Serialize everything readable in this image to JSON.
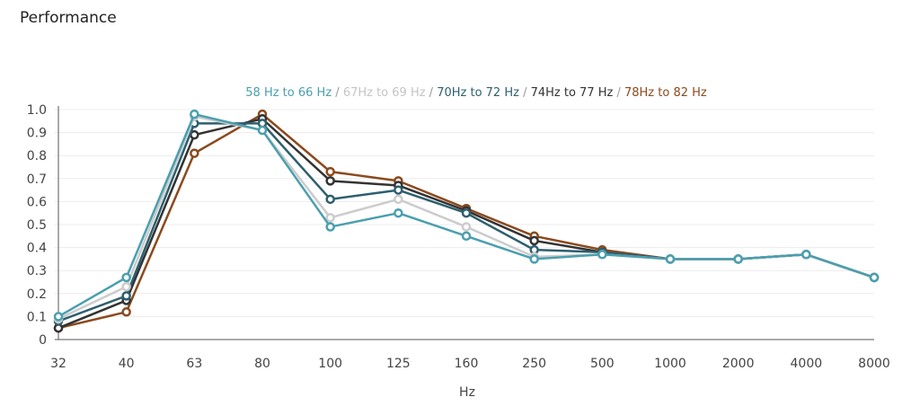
{
  "panel": {
    "title": "Performance"
  },
  "chart_data": {
    "type": "line",
    "title": "",
    "xlabel": "Hz",
    "ylabel": "",
    "ylim": [
      0,
      1.0
    ],
    "yticks": [
      "0",
      "0.1",
      "0.2",
      "0.3",
      "0.4",
      "0.5",
      "0.6",
      "0.7",
      "0.8",
      "0.9",
      "1.0"
    ],
    "categories": [
      "32",
      "40",
      "63",
      "80",
      "100",
      "125",
      "160",
      "250",
      "500",
      "1000",
      "2000",
      "4000",
      "8000"
    ],
    "grid": true,
    "legend": "top-center",
    "series": [
      {
        "name": "58 Hz to 66 Hz",
        "color": "#4a9fae",
        "values": [
          0.1,
          0.27,
          0.98,
          0.91,
          0.49,
          0.55,
          0.45,
          0.35,
          0.37,
          0.35,
          0.35,
          0.37,
          0.27
        ]
      },
      {
        "name": "67Hz to 69 Hz",
        "color": "#cccccc",
        "values": [
          0.09,
          0.23,
          0.97,
          0.91,
          0.53,
          0.61,
          0.49,
          0.36,
          0.37,
          0.35,
          0.35,
          0.37,
          0.27
        ]
      },
      {
        "name": "70Hz to 72 Hz",
        "color": "#2e5f6e",
        "values": [
          0.08,
          0.19,
          0.94,
          0.94,
          0.61,
          0.65,
          0.55,
          0.39,
          0.38,
          0.35,
          0.35,
          0.37,
          0.27
        ]
      },
      {
        "name": "74Hz to 77 Hz",
        "color": "#333333",
        "values": [
          0.05,
          0.17,
          0.89,
          0.96,
          0.69,
          0.67,
          0.56,
          0.43,
          0.38,
          0.35,
          0.35,
          0.37,
          0.27
        ]
      },
      {
        "name": "78Hz to 82 Hz",
        "color": "#8b4a1e",
        "values": [
          0.05,
          0.12,
          0.81,
          0.98,
          0.73,
          0.69,
          0.57,
          0.45,
          0.39,
          0.35,
          0.35,
          0.37,
          0.27
        ]
      }
    ]
  }
}
